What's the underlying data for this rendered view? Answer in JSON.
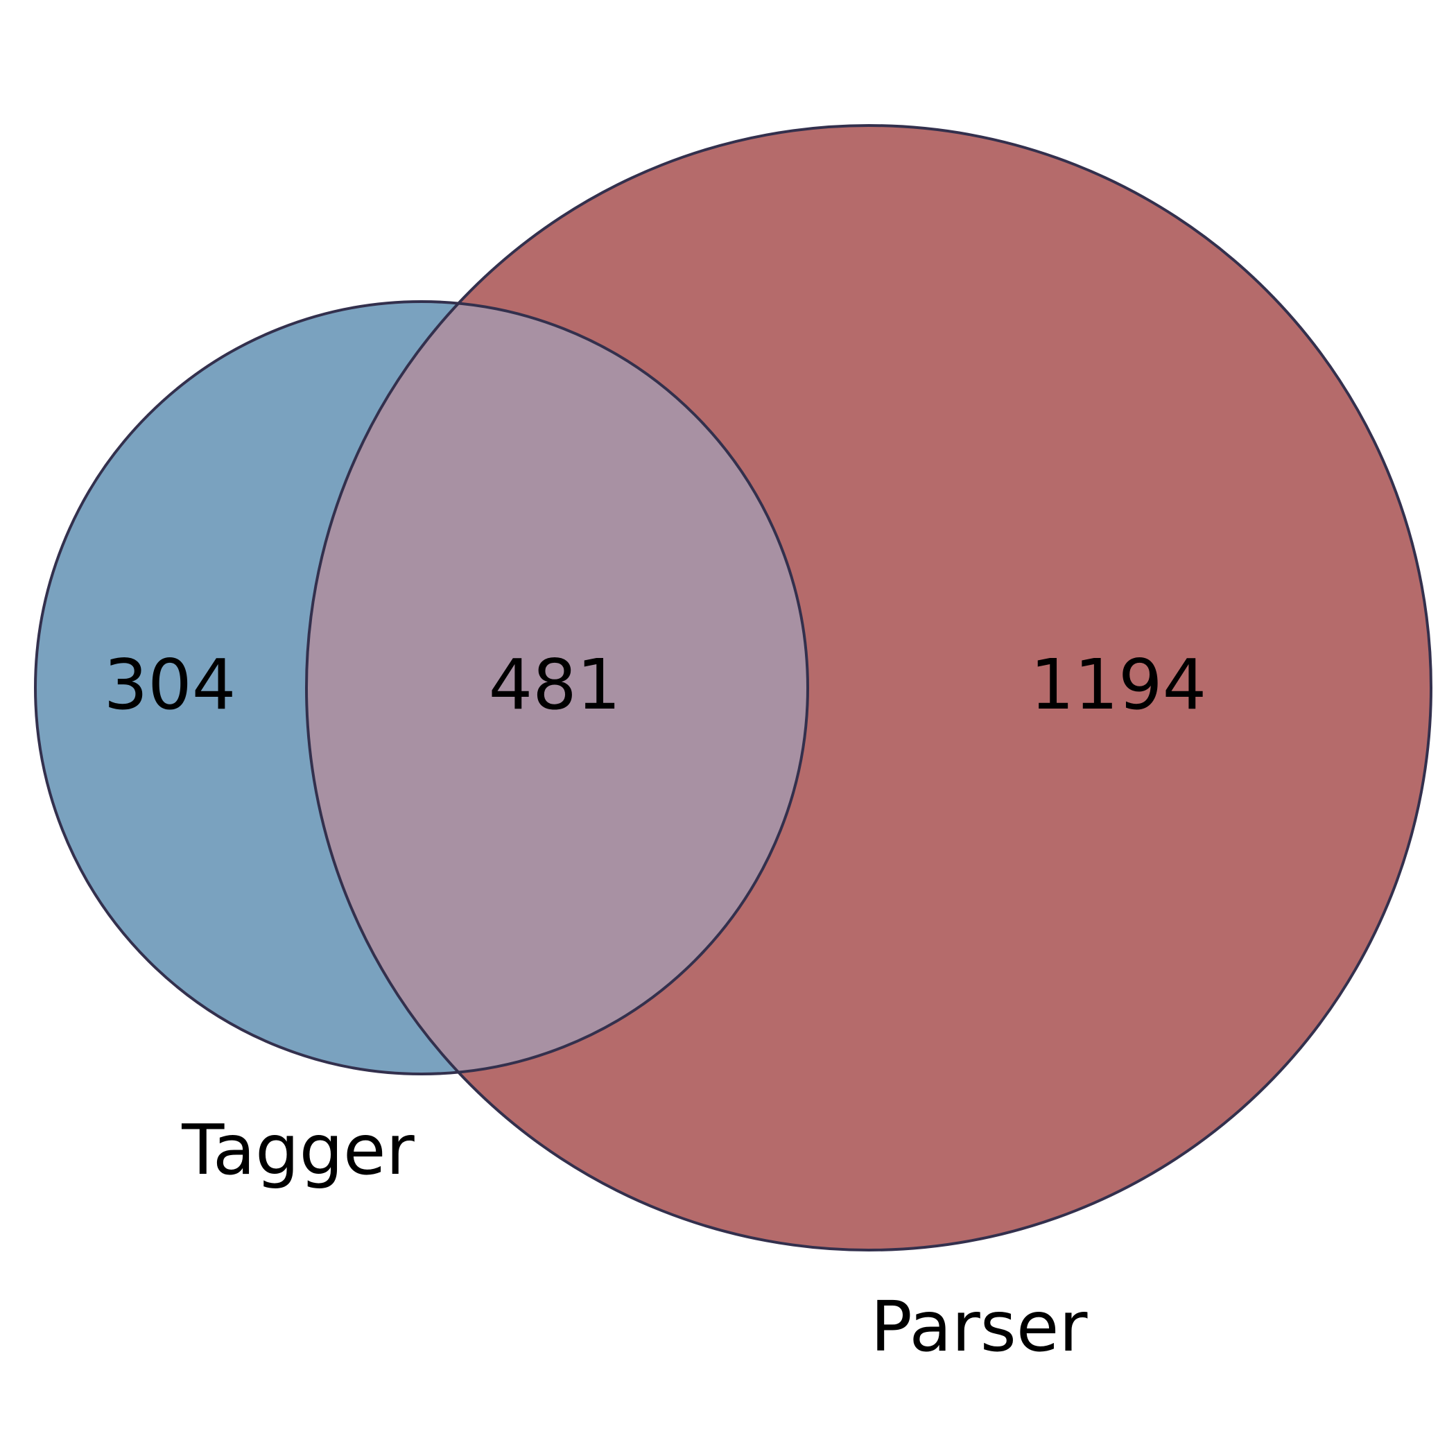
{
  "sets": [
    {
      "id": "tagger",
      "label": "Tagger",
      "only_count": "304",
      "fill_color": "#7aa2bf"
    },
    {
      "id": "parser",
      "label": "Parser",
      "only_count": "1194",
      "fill_color": "#b56b6b"
    }
  ],
  "intersection": {
    "count": "481",
    "fill_color": "#a891a3"
  },
  "outline_color": "#33304d"
}
